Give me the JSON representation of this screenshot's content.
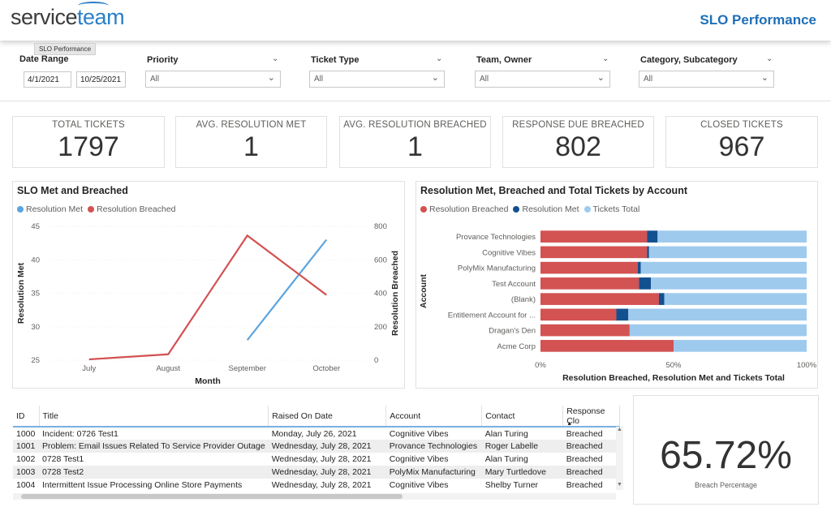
{
  "header": {
    "logo_main": "service",
    "logo_accent": "team",
    "title": "SLO Performance",
    "tooltip": "SLO Performance"
  },
  "filters": {
    "date_range": {
      "label": "Date Range",
      "start": "4/1/2021",
      "end": "10/25/2021"
    },
    "priority": {
      "label": "Priority",
      "value": "All"
    },
    "ticket_type": {
      "label": "Ticket Type",
      "value": "All"
    },
    "team_owner": {
      "label": "Team, Owner",
      "value": "All"
    },
    "category": {
      "label": "Category, Subcategory",
      "value": "All"
    }
  },
  "kpis": [
    {
      "label": "TOTAL TICKETS",
      "value": "1797"
    },
    {
      "label": "AVG. RESOLUTION MET",
      "value": "1"
    },
    {
      "label": "AVG. RESOLUTION BREACHED",
      "value": "1"
    },
    {
      "label": "RESPONSE DUE BREACHED",
      "value": "802"
    },
    {
      "label": "CLOSED TICKETS",
      "value": "967"
    }
  ],
  "chart_data": [
    {
      "type": "line",
      "title": "SLO Met and Breached",
      "xlabel": "Month",
      "ylabel": "Resolution Met",
      "y2label": "Resolution Breached",
      "categories": [
        "July",
        "August",
        "September",
        "October"
      ],
      "ylim": [
        25,
        45
      ],
      "yticks": [
        25,
        30,
        35,
        40,
        45
      ],
      "y2lim": [
        0,
        800
      ],
      "y2ticks": [
        0,
        200,
        400,
        600,
        800
      ],
      "series": [
        {
          "name": "Resolution Met",
          "axis": "left",
          "color": "#5ba4de",
          "values": [
            null,
            null,
            28,
            43
          ]
        },
        {
          "name": "Resolution Breached",
          "axis": "right",
          "color": "#d35252",
          "values": [
            5,
            35,
            745,
            390
          ]
        }
      ]
    },
    {
      "type": "bar",
      "orientation": "horizontal",
      "stacked": "percent",
      "title": "Resolution Met, Breached and Total Tickets by Account",
      "xlabel": "Resolution Breached, Resolution Met and Tickets Total",
      "ylabel": "Account",
      "xticks": [
        "0%",
        "50%",
        "100%"
      ],
      "categories": [
        "Provance Technologies",
        "Cognitive Vibes",
        "PolyMix Manufacturing",
        "Test Account",
        "(Blank)",
        "Entitlement Account for ...",
        "Dragan's Den",
        "Acme Corp"
      ],
      "series": [
        {
          "name": "Resolution Breached",
          "color": "#d35252",
          "values": [
            40,
            40,
            36.5,
            37,
            44.5,
            28.5,
            33.5,
            50
          ]
        },
        {
          "name": "Resolution Met",
          "color": "#12508f",
          "values": [
            4,
            0.8,
            1.2,
            4.5,
            2,
            4.5,
            0,
            0
          ]
        },
        {
          "name": "Tickets Total",
          "color": "#9ecaee",
          "values": [
            56,
            59.2,
            62.3,
            58.5,
            53.5,
            67,
            66.5,
            50
          ]
        }
      ]
    }
  ],
  "table": {
    "columns": [
      "ID",
      "Title",
      "Raised On Date",
      "Account",
      "Contact",
      "Response Clo"
    ],
    "rows": [
      [
        "1000",
        "Incident: 0726 Test1",
        "Monday, July 26, 2021",
        "Cognitive Vibes",
        "Alan Turing",
        "Breached"
      ],
      [
        "1001",
        "Problem: Email Issues Related To Service Provider Outage",
        "Wednesday, July 28, 2021",
        "Provance Technologies",
        "Roger Labelle",
        "Breached"
      ],
      [
        "1002",
        "0728 Test1",
        "Wednesday, July 28, 2021",
        "Cognitive Vibes",
        "Alan Turing",
        "Breached"
      ],
      [
        "1003",
        "0728 Test2",
        "Wednesday, July 28, 2021",
        "PolyMix Manufacturing",
        "Mary Turtledove",
        "Breached"
      ],
      [
        "1004",
        "Intermittent Issue Processing Online Store Payments",
        "Wednesday, July 28, 2021",
        "Cognitive Vibes",
        "Shelby Turner",
        "Breached"
      ]
    ]
  },
  "breach_card": {
    "value": "65.72%",
    "label": "Breach Percentage"
  }
}
